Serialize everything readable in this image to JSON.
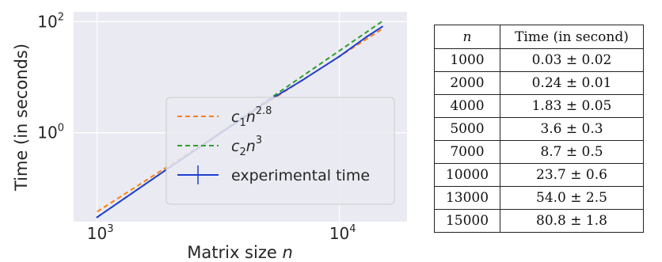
{
  "chart_data": {
    "type": "line",
    "xlabel_text": "Matrix size ",
    "xlabel_var": "n",
    "ylabel": "Time (in seconds)",
    "xscale": "log",
    "yscale": "log",
    "xlim": [
      800,
      19000
    ],
    "ylim": [
      0.025,
      150
    ],
    "grid": true,
    "x_ticks": [
      {
        "base": "10",
        "exp": "3",
        "value": 1000
      },
      {
        "base": "10",
        "exp": "4",
        "value": 10000
      }
    ],
    "y_ticks": [
      {
        "base": "10",
        "exp": "0",
        "value": 1
      },
      {
        "base": "10",
        "exp": "2",
        "value": 100
      }
    ],
    "legend_position": "lower-right",
    "series": [
      {
        "label_c": "c",
        "label_sub": "1",
        "label_n": "n",
        "label_exp": "2.8",
        "style": "dashed",
        "color": "#ff7f0e",
        "x": [
          1000,
          15000
        ],
        "y": [
          0.0378,
          73.6
        ]
      },
      {
        "label_c": "c",
        "label_sub": "2",
        "label_n": "n",
        "label_exp": "3",
        "style": "dashed",
        "color": "#2ca02c",
        "x": [
          1000,
          15000
        ],
        "y": [
          0.03,
          101.3
        ]
      },
      {
        "label": "experimental time",
        "style": "solid",
        "color": "#1f3fd0",
        "x": [
          1000,
          2000,
          4000,
          5000,
          7000,
          10000,
          13000,
          15000
        ],
        "y": [
          0.03,
          0.24,
          1.83,
          3.6,
          8.7,
          23.7,
          54.0,
          80.8
        ]
      }
    ]
  },
  "table": {
    "headers": [
      "n",
      "Time (in second)"
    ],
    "rows": [
      [
        "1000",
        "0.03 ± 0.02"
      ],
      [
        "2000",
        "0.24 ± 0.01"
      ],
      [
        "4000",
        "1.83 ± 0.05"
      ],
      [
        "5000",
        "3.6 ± 0.3"
      ],
      [
        "7000",
        "8.7 ± 0.5"
      ],
      [
        "10000",
        "23.7 ± 0.6"
      ],
      [
        "13000",
        "54.0 ± 2.5"
      ],
      [
        "15000",
        "80.8 ± 1.8"
      ]
    ]
  },
  "colors": {
    "plot_bg": "#eaeaf2",
    "grid": "#ffffff",
    "legend_bg": "#eaeaf2"
  }
}
